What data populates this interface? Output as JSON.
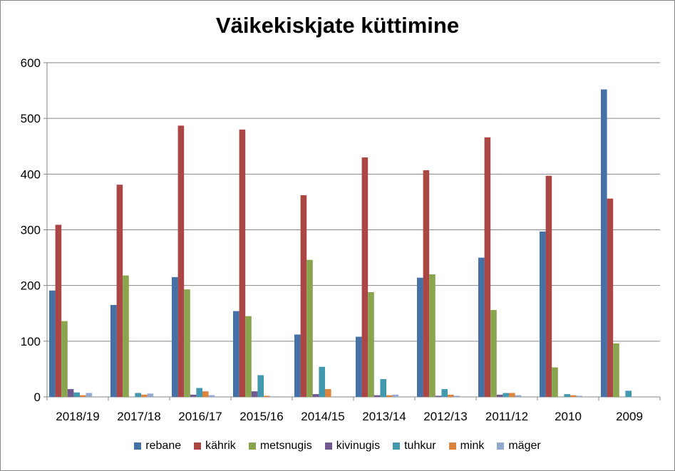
{
  "chart_data": {
    "type": "bar",
    "title": "Väikekiskjate küttimine",
    "xlabel": "",
    "ylabel": "",
    "ylim": [
      0,
      600
    ],
    "yticks": [
      0,
      100,
      200,
      300,
      400,
      500,
      600
    ],
    "grid": true,
    "legend_position": "bottom",
    "categories": [
      "2018/19",
      "2017/18",
      "2016/17",
      "2015/16",
      "2014/15",
      "2013/14",
      "2012/13",
      "2011/12",
      "2010",
      "2009"
    ],
    "series": [
      {
        "name": "rebane",
        "color": "#4472A8",
        "values": [
          191,
          165,
          215,
          154,
          112,
          108,
          214,
          250,
          297,
          552
        ]
      },
      {
        "name": "kährik",
        "color": "#AA4643",
        "values": [
          309,
          381,
          487,
          480,
          362,
          430,
          407,
          466,
          397,
          356
        ]
      },
      {
        "name": "metsnugis",
        "color": "#89A54E",
        "values": [
          136,
          218,
          193,
          145,
          246,
          188,
          220,
          156,
          53,
          96
        ]
      },
      {
        "name": "kivinugis",
        "color": "#71588F",
        "values": [
          14,
          0,
          4,
          10,
          5,
          3,
          2,
          4,
          0,
          0
        ]
      },
      {
        "name": "tuhkur",
        "color": "#4198AF",
        "values": [
          8,
          7,
          16,
          39,
          54,
          32,
          14,
          7,
          5,
          11
        ]
      },
      {
        "name": "mink",
        "color": "#DB843D",
        "values": [
          3,
          4,
          10,
          2,
          14,
          3,
          4,
          7,
          3,
          0
        ]
      },
      {
        "name": "mäger",
        "color": "#93A9CF",
        "values": [
          7,
          6,
          3,
          1,
          0,
          4,
          2,
          3,
          2,
          0
        ]
      }
    ]
  }
}
